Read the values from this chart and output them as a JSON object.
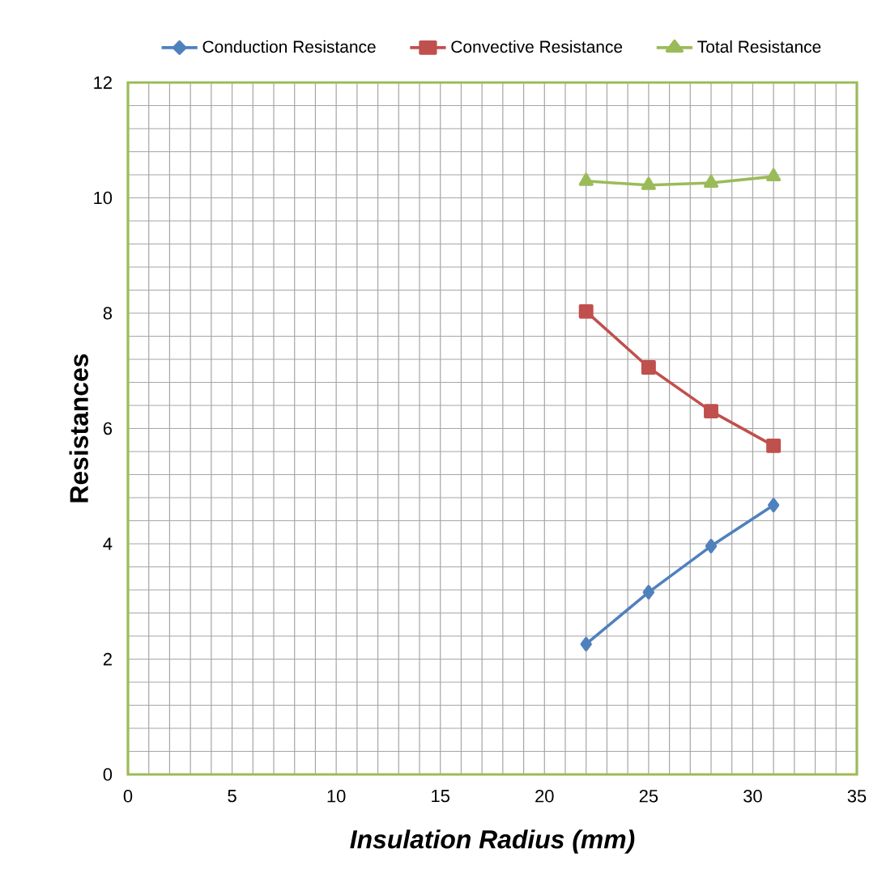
{
  "chart_data": {
    "type": "line",
    "xlabel": "*Insulation Radius (mm)*",
    "ylabel": "Resistances",
    "x": [
      22,
      25,
      28,
      31
    ],
    "series": [
      {
        "name": "Conduction Resistance",
        "color": "#4f81bd",
        "marker": "diamond",
        "values": [
          2.26,
          3.16,
          3.96,
          4.67
        ]
      },
      {
        "name": "Convective Resistance",
        "color": "#c0504d",
        "marker": "square",
        "values": [
          8.03,
          7.06,
          6.3,
          5.7
        ]
      },
      {
        "name": "Total Resistance",
        "color": "#9bbb59",
        "marker": "triangle",
        "values": [
          10.29,
          10.22,
          10.26,
          10.37
        ]
      }
    ],
    "xlim": [
      0,
      35
    ],
    "xticks": [
      0,
      5,
      10,
      15,
      20,
      25,
      30,
      35
    ],
    "ylim": [
      0,
      12
    ],
    "yticks": [
      0,
      2,
      4,
      6,
      8,
      10,
      12
    ],
    "grid": true,
    "legend": "top",
    "line_style": "solid"
  }
}
